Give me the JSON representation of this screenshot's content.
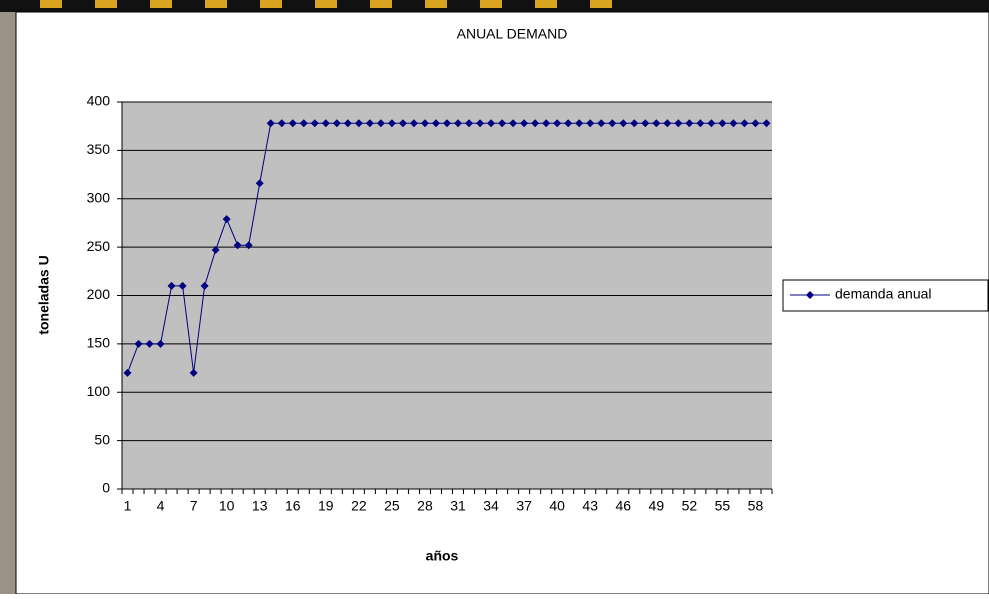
{
  "chart_data": {
    "type": "line",
    "title": "ANUAL DEMAND",
    "x_label": "años",
    "y_label": "toneladas U",
    "categories": [
      1,
      null,
      null,
      4,
      null,
      null,
      7,
      null,
      null,
      10,
      null,
      null,
      13,
      null,
      null,
      16,
      null,
      null,
      19,
      null,
      null,
      22,
      null,
      null,
      25,
      null,
      null,
      28,
      null,
      null,
      31,
      null,
      null,
      34,
      null,
      null,
      37,
      null,
      null,
      40,
      null,
      null,
      43,
      null,
      null,
      46,
      null,
      null,
      49,
      null,
      null,
      52,
      null,
      null,
      55,
      null,
      null,
      58,
      null
    ],
    "series": [
      {
        "name": "demanda anual",
        "color": "#000080",
        "values": [
          120,
          150,
          150,
          150,
          210,
          210,
          120,
          210,
          247,
          279,
          252,
          252,
          316,
          378,
          378,
          378,
          378,
          378,
          378,
          378,
          378,
          378,
          378,
          378,
          378,
          378,
          378,
          378,
          378,
          378,
          378,
          378,
          378,
          378,
          378,
          378,
          378,
          378,
          378,
          378,
          378,
          378,
          378,
          378,
          378,
          378,
          378,
          378,
          378,
          378,
          378,
          378,
          378,
          378,
          378,
          378,
          378,
          378,
          378
        ]
      }
    ],
    "ylim": [
      0,
      400
    ],
    "yticks": [
      0,
      50,
      100,
      150,
      200,
      250,
      300,
      350,
      400
    ],
    "grid": true,
    "legend": "right"
  }
}
